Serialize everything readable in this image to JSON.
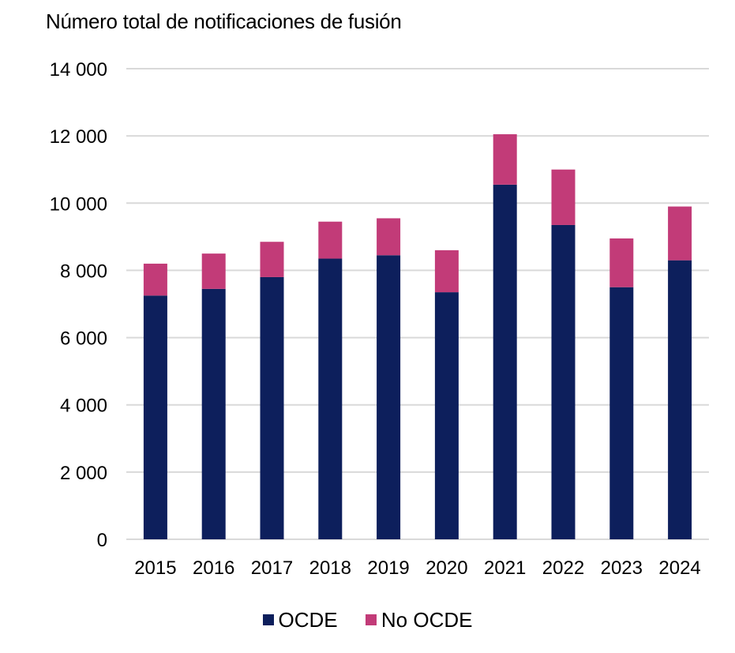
{
  "chart_data": {
    "type": "bar",
    "stacked": true,
    "title": "Número total de notificaciones de fusión",
    "xlabel": "",
    "ylabel": "",
    "categories": [
      "2015",
      "2016",
      "2017",
      "2018",
      "2019",
      "2020",
      "2021",
      "2022",
      "2023",
      "2024"
    ],
    "series": [
      {
        "name": "OCDE",
        "color": "#0d1f5c",
        "values": [
          7250,
          7450,
          7800,
          8350,
          8450,
          7350,
          10550,
          9350,
          7500,
          8300
        ]
      },
      {
        "name": "No OCDE",
        "color": "#c23b78",
        "values": [
          950,
          1050,
          1050,
          1100,
          1100,
          1250,
          1500,
          1650,
          1450,
          1600
        ]
      }
    ],
    "ylim": [
      0,
      14000
    ],
    "yticks": [
      0,
      2000,
      4000,
      6000,
      8000,
      10000,
      12000,
      14000
    ],
    "ytick_labels": [
      "0",
      "2 000",
      "4 000",
      "6 000",
      "8 000",
      "10 000",
      "12 000",
      "14 000"
    ],
    "grid": true,
    "legend_position": "bottom"
  }
}
